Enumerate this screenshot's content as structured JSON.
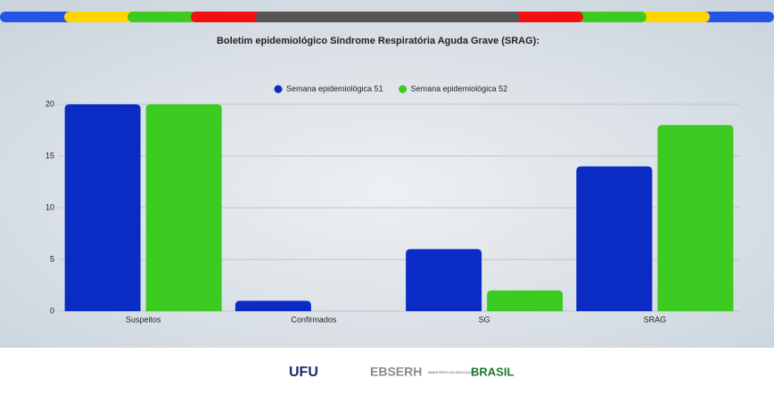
{
  "chart_data": {
    "type": "bar",
    "title": "Boletim epidemiológico Síndrome Respiratória Aguda Grave (SRAG):",
    "categories": [
      "Suspeitos",
      "Confirmados",
      "SG",
      "SRAG"
    ],
    "series": [
      {
        "name": "Semana epidemiológica 51",
        "color": "#0a2bc4",
        "values": [
          20,
          1,
          6,
          14
        ]
      },
      {
        "name": "Semana epidemiológica 52",
        "color": "#3ccb21",
        "values": [
          20,
          0,
          2,
          18
        ]
      }
    ],
    "ylim": [
      0,
      20
    ],
    "yticks": [
      0,
      5,
      10,
      15,
      20
    ],
    "grid": true,
    "legend": "top"
  },
  "footer": {
    "logos": [
      "UFU",
      "EBSERH",
      "MINISTÉRIO DA EDUCAÇÃO",
      "BRASIL"
    ]
  }
}
